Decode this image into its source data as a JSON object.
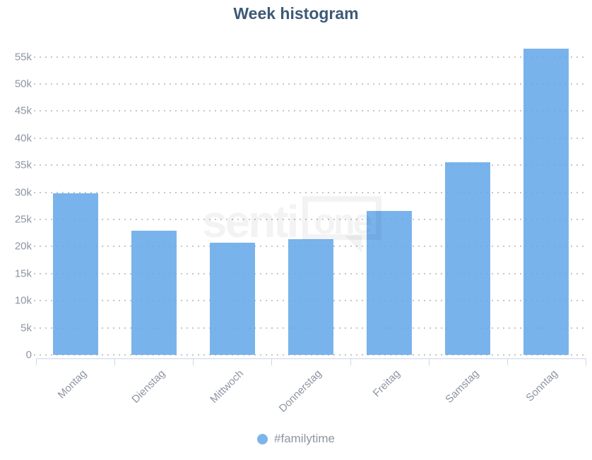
{
  "header": {
    "title": "Week histogram",
    "title_color": "#3d5a76"
  },
  "legend": {
    "label": "#familytime",
    "marker_color": "#7cb5ec"
  },
  "watermark": {
    "part1": "senti",
    "part2": "one"
  },
  "colors": {
    "bar": "#7cb5ec",
    "axis_line": "#ccd6eb",
    "grid_dots": "#c6c6c6",
    "axis_label": "#8e95a2"
  },
  "chart_data": {
    "type": "bar",
    "title": "Week histogram",
    "xlabel": "",
    "ylabel": "",
    "categories": [
      "Montag",
      "Dienstag",
      "Mittwoch",
      "Donnerstag",
      "Freitag",
      "Samstag",
      "Sonntag"
    ],
    "series": [
      {
        "name": "#familytime",
        "color": "#7cb5ec",
        "values": [
          29800,
          22900,
          20700,
          21300,
          26600,
          35600,
          56500
        ]
      }
    ],
    "ylim": [
      0,
      57500
    ],
    "ytick_step": 5000,
    "ytick_labels": [
      "0",
      "5k",
      "10k",
      "15k",
      "20k",
      "25k",
      "30k",
      "35k",
      "40k",
      "45k",
      "50k",
      "55k"
    ],
    "grid": "dotted-horizontal",
    "legend_position": "bottom-center"
  }
}
